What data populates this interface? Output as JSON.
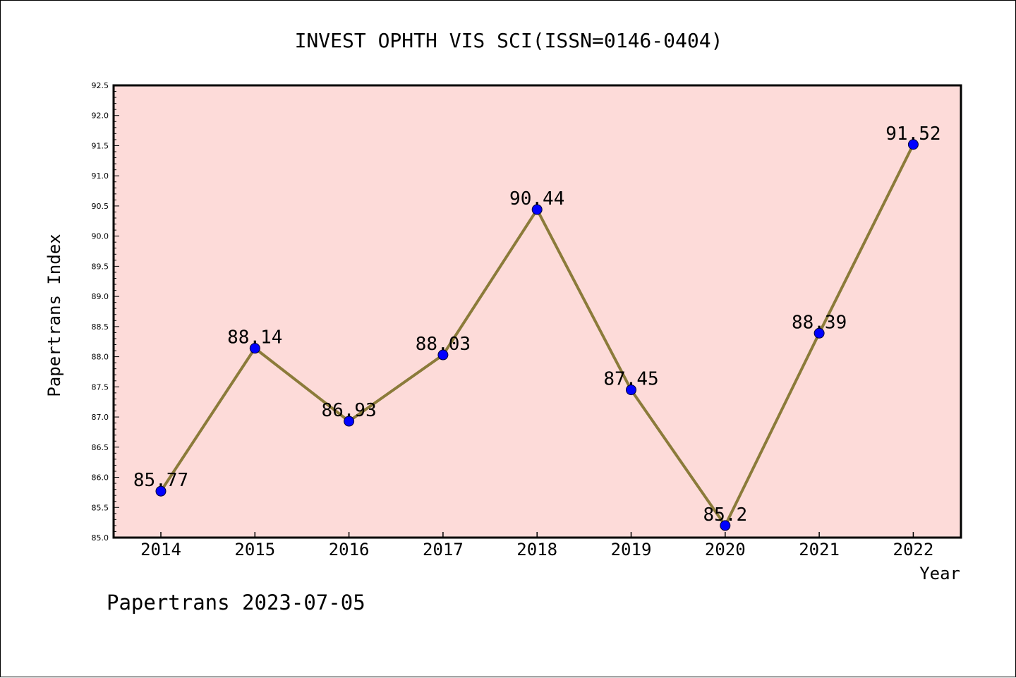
{
  "chart_data": {
    "type": "line",
    "title": "INVEST OPHTH VIS SCI(ISSN=0146-0404)",
    "xlabel": "Year",
    "ylabel": "Papertrans Index",
    "categories": [
      "2014",
      "2015",
      "2016",
      "2017",
      "2018",
      "2019",
      "2020",
      "2021",
      "2022"
    ],
    "series": [
      {
        "values": [
          85.77,
          88.14,
          86.93,
          88.03,
          90.44,
          87.45,
          85.2,
          88.39,
          91.52
        ],
        "labels": [
          "85.77",
          "88.14",
          "86.93",
          "88.03",
          "90.44",
          "87.45",
          "85.2",
          "88.39",
          "91.52"
        ]
      }
    ],
    "ylim": [
      85.0,
      92.5
    ],
    "yticks": [
      "85.0",
      "85.5",
      "86.0",
      "86.5",
      "87.0",
      "87.5",
      "88.0",
      "88.5",
      "89.0",
      "89.5",
      "90.0",
      "90.5",
      "91.0",
      "91.5",
      "92.0",
      "92.5"
    ],
    "grid": false,
    "colors": {
      "plot_background": "#fddbd9",
      "line": "#8b7b3a",
      "marker": "#0000ff"
    }
  },
  "footer": "Papertrans 2023-07-05"
}
